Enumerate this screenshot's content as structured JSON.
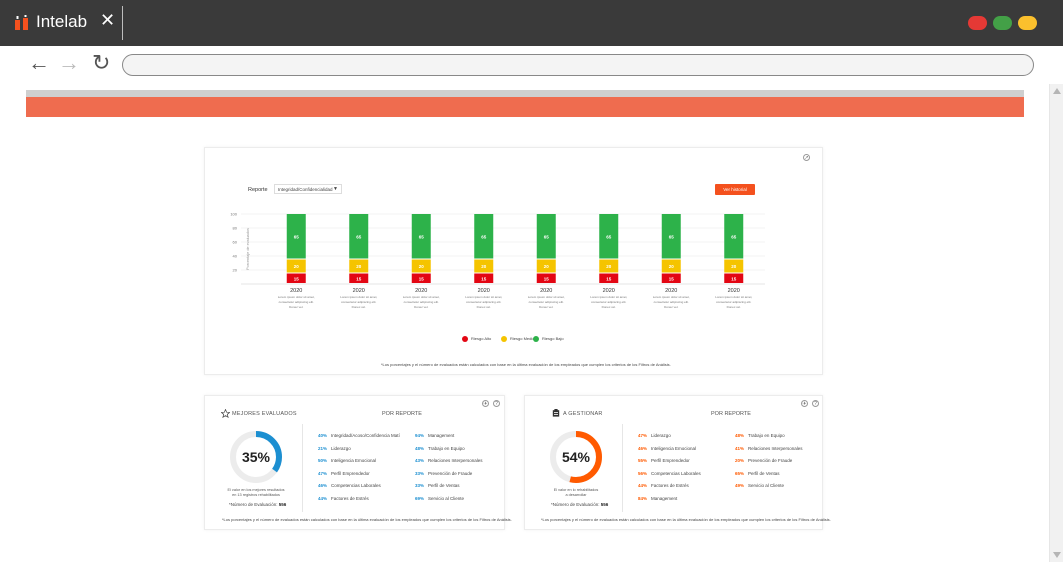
{
  "browser": {
    "tab_title": "Intelab",
    "tab_close": "✕",
    "window_dots": [
      "#e53935",
      "#43a047",
      "#fbc02d"
    ],
    "nav": {
      "back": "←",
      "forward": "→",
      "reload": "↻"
    },
    "url": ""
  },
  "colors": {
    "accent": "#ef6c4f",
    "button": "#f4511e",
    "red": "#e30613",
    "yellow": "#f5c400",
    "green": "#2db24a",
    "blue": "#1c8fd1",
    "orange": "#ff5a00"
  },
  "report": {
    "label": "Reporte",
    "selected": "Integridad/Confidencialidad",
    "history_button": "Ver historial",
    "footnote": "*Los porcentajes y el número de evaluados están calculados con base en la última evaluación de los empleados que cumplen los criterios de los Filtros de Análisis."
  },
  "chart_data": {
    "type": "bar",
    "stacked": true,
    "ylabel": "Porcentaje de evaluados",
    "ylim": [
      0,
      100
    ],
    "yticks": [
      20,
      40,
      60,
      80,
      100
    ],
    "categories": [
      "2020",
      "2020",
      "2020",
      "2020",
      "2020",
      "2020",
      "2020",
      "2020"
    ],
    "category_notes": [
      [
        "Lorem ipsum dolor sit amet,",
        "consectetur adipiscing elit.",
        "Donec vel."
      ],
      [
        "Lorem ipsum dolor sit amet,",
        "consectetur adipiscing elit.",
        "Donec vel."
      ],
      [
        "Lorem ipsum dolor sit amet,",
        "consectetur adipiscing elit.",
        "Donec vel."
      ],
      [
        "Lorem ipsum dolor sit amet,",
        "consectetur adipiscing elit.",
        "Donec vel."
      ],
      [
        "Lorem ipsum dolor sit amet,",
        "consectetur adipiscing elit.",
        "Donec vel."
      ],
      [
        "Lorem ipsum dolor sit amet,",
        "consectetur adipiscing elit.",
        "Donec vel."
      ],
      [
        "Lorem ipsum dolor sit amet,",
        "consectetur adipiscing elit.",
        "Donec vel."
      ],
      [
        "Lorem ipsum dolor sit amet,",
        "consectetur adipiscing elit.",
        "Donec vel."
      ]
    ],
    "series": [
      {
        "name": "Riesgo Alto",
        "color": "#e30613",
        "values": [
          15,
          15,
          15,
          15,
          15,
          15,
          15,
          15
        ]
      },
      {
        "name": "Riesgo Medio",
        "color": "#f5c400",
        "values": [
          20,
          20,
          20,
          20,
          20,
          20,
          20,
          20
        ]
      },
      {
        "name": "Riesgo Bajo",
        "color": "#2db24a",
        "values": [
          65,
          65,
          65,
          65,
          65,
          65,
          65,
          65
        ]
      }
    ],
    "grid": true,
    "legend_position": "bottom-center"
  },
  "best": {
    "title": "MEJORES EVALUADOS",
    "subtitle": "POR REPORTE",
    "percent_label": "35%",
    "percent": 35,
    "caption": [
      "El valor en los mejores resultados",
      "en 13 registros rehabilitados"
    ],
    "evaluations_label": "*Número de Evaluación:",
    "evaluations": "556",
    "items": [
      {
        "pct": "40%",
        "label": "Integridad/Acoso/Confidencia Matí"
      },
      {
        "pct": "21%",
        "label": "Liderazgo"
      },
      {
        "pct": "50%",
        "label": "Inteligencia Emocional"
      },
      {
        "pct": "47%",
        "label": "Perfil Emprendedor"
      },
      {
        "pct": "46%",
        "label": "Competencias Laborales"
      },
      {
        "pct": "44%",
        "label": "Factores de Estrés"
      },
      {
        "pct": "94%",
        "label": "Management"
      },
      {
        "pct": "48%",
        "label": "Trabajo en Equipo"
      },
      {
        "pct": "43%",
        "label": "Relaciones Interpersonales"
      },
      {
        "pct": "33%",
        "label": "Prevención de Fraude"
      },
      {
        "pct": "33%",
        "label": "Perfil de Ventas"
      },
      {
        "pct": "69%",
        "label": "Servicio al Cliente"
      }
    ],
    "footnote": "*Los porcentajes y el número de evaluados están calculados con base en la última evaluación de los empleados que cumplen los criterios de los Filtros de Análisis."
  },
  "manage": {
    "title": "A GESTIONAR",
    "subtitle": "POR REPORTE",
    "percent_label": "54%",
    "percent": 54,
    "caption": [
      "El valor en lo rehabilitados",
      "a desarrollar"
    ],
    "evaluations_label": "*Número de Evaluación:",
    "evaluations": "556",
    "items": [
      {
        "pct": "47%",
        "label": "Liderazgo"
      },
      {
        "pct": "46%",
        "label": "Inteligencia Emocional"
      },
      {
        "pct": "55%",
        "label": "Perfil Emprendedor"
      },
      {
        "pct": "56%",
        "label": "Competencias Laborales"
      },
      {
        "pct": "44%",
        "label": "Factores de Estrés"
      },
      {
        "pct": "84%",
        "label": "Management"
      },
      {
        "pct": "48%",
        "label": "Trabajo en Equipo"
      },
      {
        "pct": "41%",
        "label": "Relaciones Interpersonales"
      },
      {
        "pct": "20%",
        "label": "Prevención de Fraude"
      },
      {
        "pct": "65%",
        "label": "Perfil de Ventas"
      },
      {
        "pct": "49%",
        "label": "Servicio al Cliente"
      }
    ],
    "footnote": "*Los porcentajes y el número de evaluados están calculados con base en la última evaluación de los empleados que cumplen los criterios de los Filtros de Análisis."
  }
}
